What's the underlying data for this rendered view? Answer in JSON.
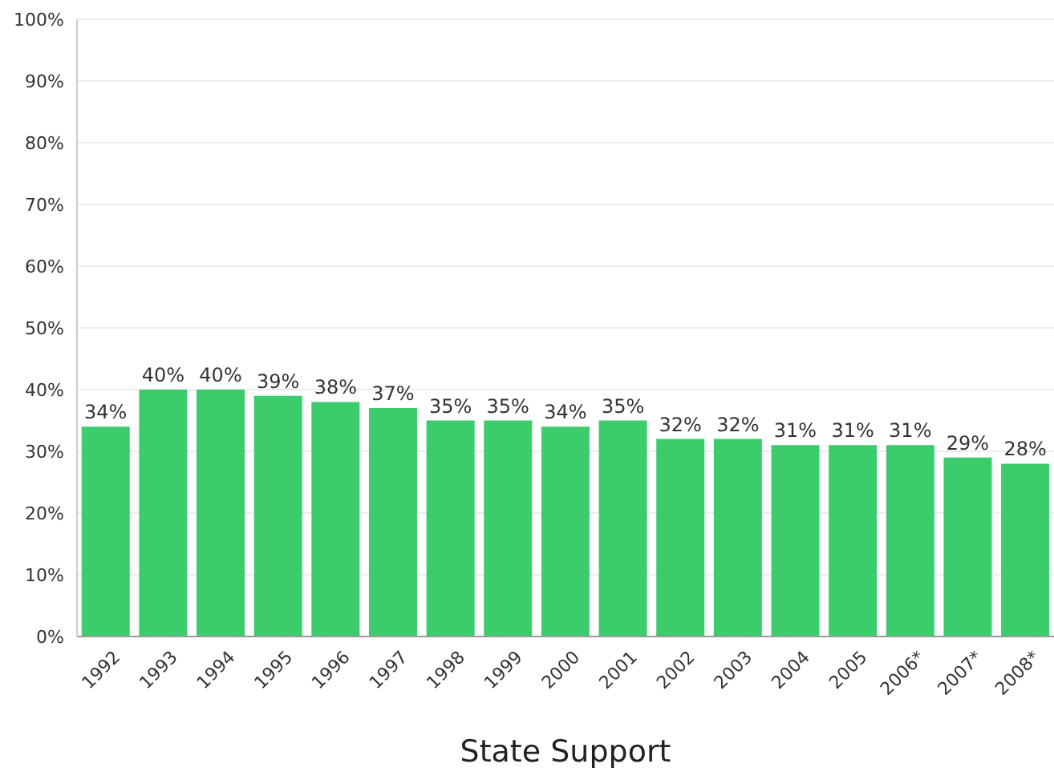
{
  "chart_data": {
    "type": "bar",
    "xlabel": "State Support",
    "categories": [
      "1992",
      "1993",
      "1994",
      "1995",
      "1996",
      "1997",
      "1998",
      "1999",
      "2000",
      "2001",
      "2002",
      "2003",
      "2004",
      "2005",
      "2006*",
      "2007*",
      "2008*"
    ],
    "values": [
      34,
      40,
      40,
      39,
      38,
      37,
      35,
      35,
      34,
      35,
      32,
      32,
      31,
      31,
      31,
      29,
      28
    ],
    "value_labels": [
      "34%",
      "40%",
      "40%",
      "39%",
      "38%",
      "37%",
      "35%",
      "35%",
      "34%",
      "35%",
      "32%",
      "32%",
      "31%",
      "31%",
      "31%",
      "29%",
      "28%"
    ],
    "color": "#3dcc6c",
    "ylim": [
      0,
      100
    ],
    "yticks": [
      {
        "value": 0,
        "label": "0%"
      },
      {
        "value": 10,
        "label": "10%"
      },
      {
        "value": 20,
        "label": "20%"
      },
      {
        "value": 30,
        "label": "30%"
      },
      {
        "value": 40,
        "label": "40%"
      },
      {
        "value": 50,
        "label": "50%"
      },
      {
        "value": 60,
        "label": "60%"
      },
      {
        "value": 70,
        "label": "70%"
      },
      {
        "value": 80,
        "label": "80%"
      },
      {
        "value": 90,
        "label": "90%"
      },
      {
        "value": 100,
        "label": "100%"
      }
    ],
    "grid": "y",
    "legend": false
  }
}
